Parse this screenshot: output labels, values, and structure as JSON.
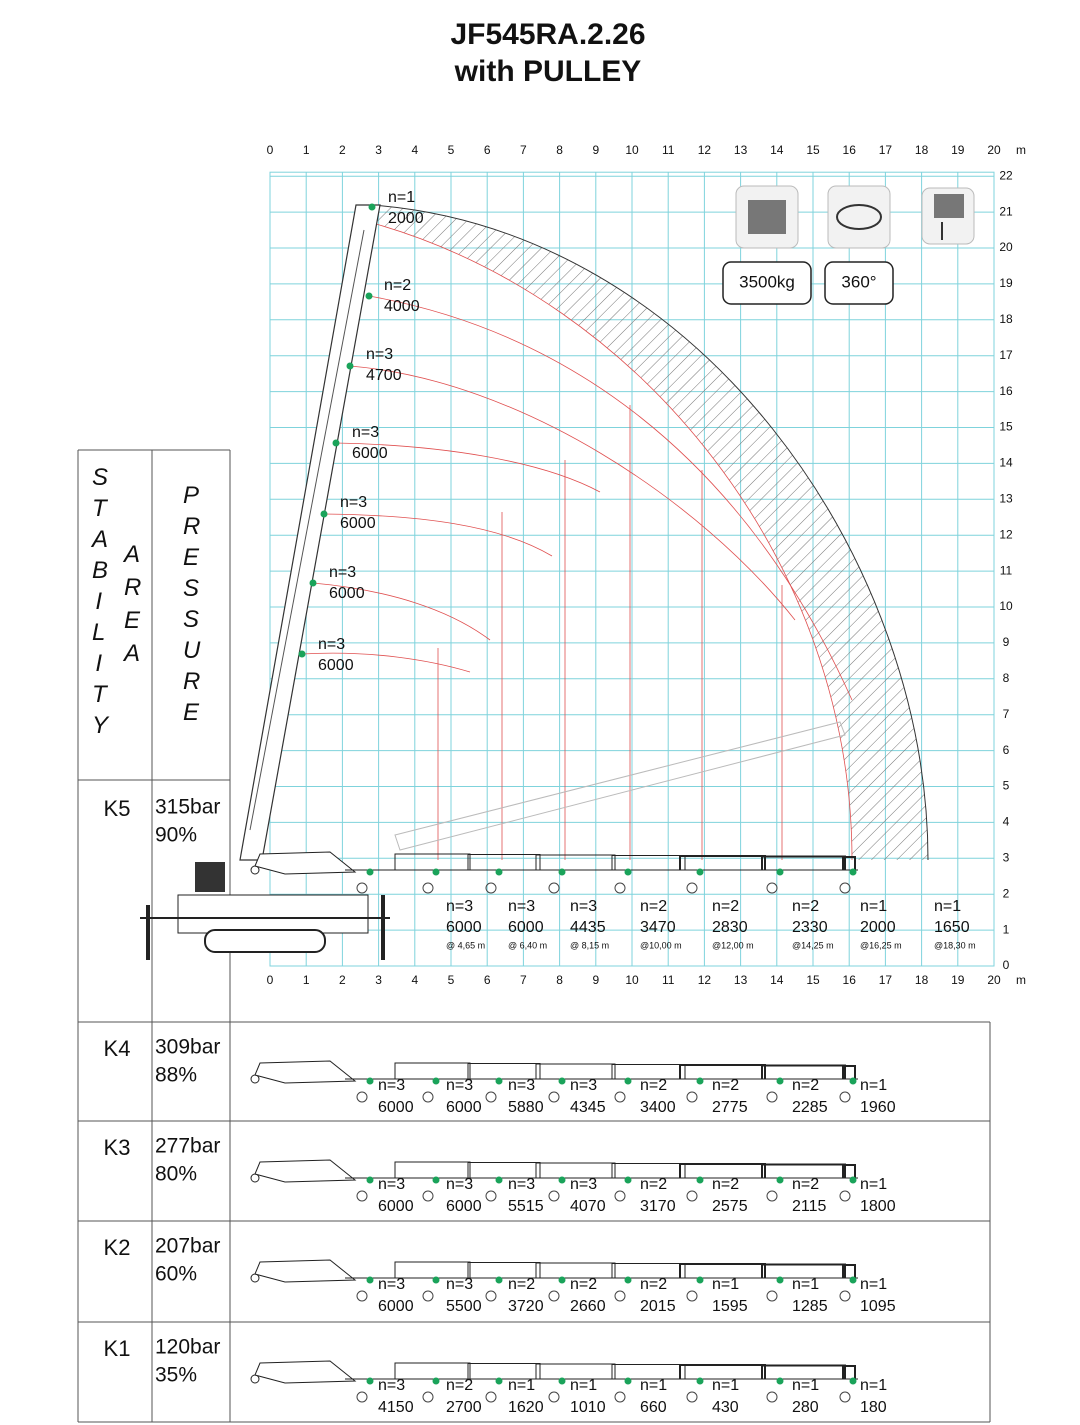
{
  "header": {
    "title_line1": "JF545RA.2.26",
    "title_line2": "with PULLEY"
  },
  "chart": {
    "x_ticks": [
      0,
      1,
      2,
      3,
      4,
      5,
      6,
      7,
      8,
      9,
      10,
      11,
      12,
      13,
      14,
      15,
      16,
      17,
      18,
      19,
      20
    ],
    "x_unit": "m",
    "y_ticks": [
      0,
      1,
      2,
      3,
      4,
      5,
      6,
      7,
      8,
      9,
      10,
      11,
      12,
      13,
      14,
      15,
      16,
      17,
      18,
      19,
      20,
      21,
      22
    ],
    "badges": [
      "3500kg",
      "360°"
    ],
    "boom_loads": [
      {
        "n": "n=1",
        "load": 2000
      },
      {
        "n": "n=2",
        "load": 4000
      },
      {
        "n": "n=3",
        "load": 4700
      },
      {
        "n": "n=3",
        "load": 6000
      },
      {
        "n": "n=3",
        "load": 6000
      },
      {
        "n": "n=3",
        "load": 6000
      },
      {
        "n": "n=3",
        "load": 6000
      }
    ]
  },
  "side": {
    "stability": "STABILITY",
    "area": "AREA",
    "pressure": "PRESSURE"
  },
  "rows": [
    {
      "k": "K5",
      "pressure": "315bar",
      "percent": "90%",
      "loads": [
        {
          "n": "n=3",
          "load": 6000,
          "reach": "@ 4,65 m"
        },
        {
          "n": "n=3",
          "load": 6000,
          "reach": "@ 6,40 m"
        },
        {
          "n": "n=3",
          "load": 4435,
          "reach": "@ 8,15 m"
        },
        {
          "n": "n=2",
          "load": 3470,
          "reach": "@10,00 m"
        },
        {
          "n": "n=2",
          "load": 2830,
          "reach": "@12,00 m"
        },
        {
          "n": "n=2",
          "load": 2330,
          "reach": "@14,25 m"
        },
        {
          "n": "n=1",
          "load": 2000,
          "reach": "@16,25 m"
        },
        {
          "n": "n=1",
          "load": 1650,
          "reach": "@18,30 m"
        }
      ]
    },
    {
      "k": "K4",
      "pressure": "309bar",
      "percent": "88%",
      "loads": [
        {
          "n": "n=3",
          "load": 6000
        },
        {
          "n": "n=3",
          "load": 6000
        },
        {
          "n": "n=3",
          "load": 5880
        },
        {
          "n": "n=3",
          "load": 4345
        },
        {
          "n": "n=2",
          "load": 3400
        },
        {
          "n": "n=2",
          "load": 2775
        },
        {
          "n": "n=2",
          "load": 2285
        },
        {
          "n": "n=1",
          "load": 1960
        }
      ]
    },
    {
      "k": "K3",
      "pressure": "277bar",
      "percent": "80%",
      "loads": [
        {
          "n": "n=3",
          "load": 6000
        },
        {
          "n": "n=3",
          "load": 6000
        },
        {
          "n": "n=3",
          "load": 5515
        },
        {
          "n": "n=3",
          "load": 4070
        },
        {
          "n": "n=2",
          "load": 3170
        },
        {
          "n": "n=2",
          "load": 2575
        },
        {
          "n": "n=2",
          "load": 2115
        },
        {
          "n": "n=1",
          "load": 1800
        }
      ]
    },
    {
      "k": "K2",
      "pressure": "207bar",
      "percent": "60%",
      "loads": [
        {
          "n": "n=3",
          "load": 6000
        },
        {
          "n": "n=3",
          "load": 5500
        },
        {
          "n": "n=2",
          "load": 3720
        },
        {
          "n": "n=2",
          "load": 2660
        },
        {
          "n": "n=2",
          "load": 2015
        },
        {
          "n": "n=1",
          "load": 1595
        },
        {
          "n": "n=1",
          "load": 1285
        },
        {
          "n": "n=1",
          "load": 1095
        }
      ]
    },
    {
      "k": "K1",
      "pressure": "120bar",
      "percent": "35%",
      "loads": [
        {
          "n": "n=3",
          "load": 4150
        },
        {
          "n": "n=2",
          "load": 2700
        },
        {
          "n": "n=1",
          "load": 1620
        },
        {
          "n": "n=1",
          "load": 1010
        },
        {
          "n": "n=1",
          "load": 660
        },
        {
          "n": "n=1",
          "load": 430
        },
        {
          "n": "n=1",
          "load": 280
        },
        {
          "n": "n=1",
          "load": 180
        }
      ]
    }
  ]
}
